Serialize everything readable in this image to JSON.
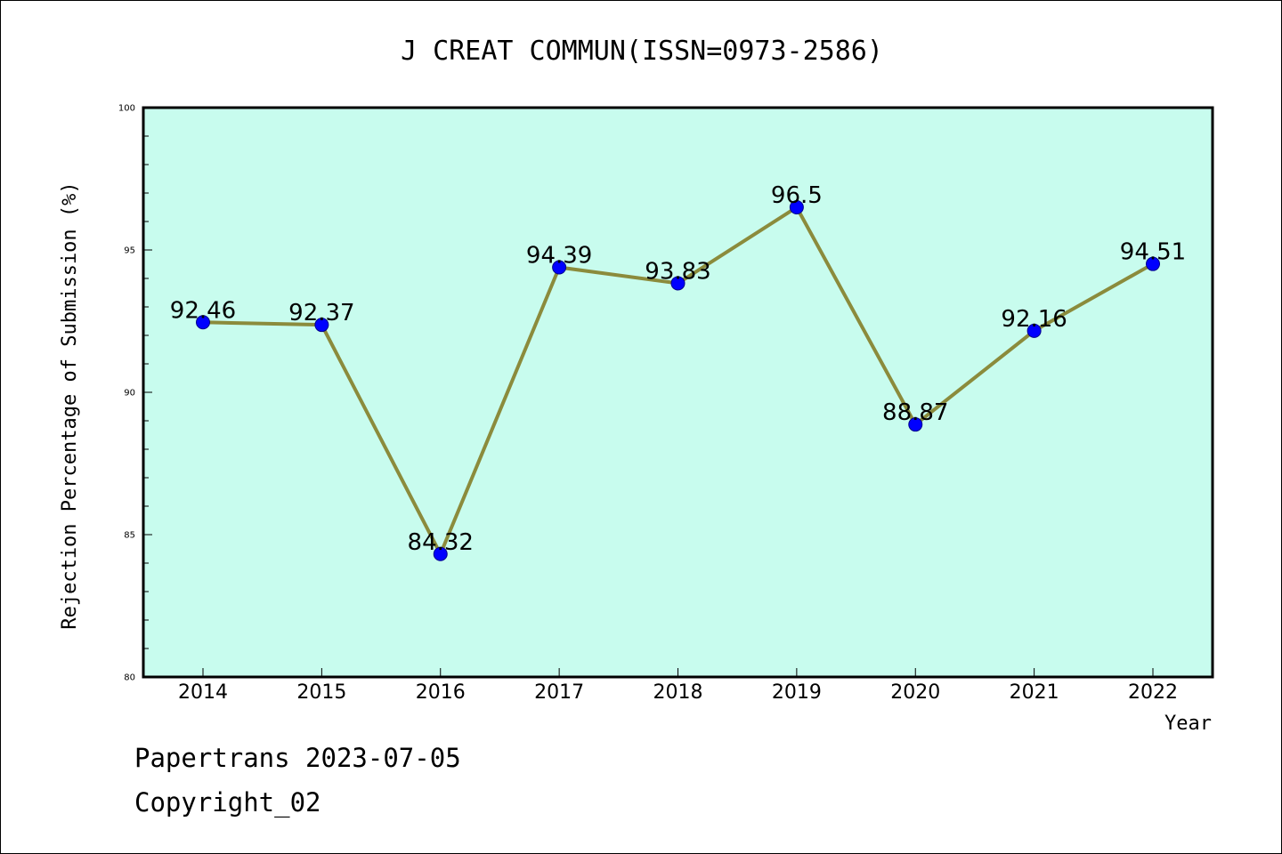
{
  "chart_data": {
    "type": "line",
    "title": "J CREAT COMMUN(ISSN=0973-2586)",
    "xlabel": "Year",
    "ylabel": "Rejection Percentage of Submission (%)",
    "categories": [
      "2014",
      "2015",
      "2016",
      "2017",
      "2018",
      "2019",
      "2020",
      "2021",
      "2022"
    ],
    "series": [
      {
        "values": [
          92.46,
          92.37,
          84.32,
          94.39,
          93.83,
          96.5,
          88.87,
          92.16,
          94.51
        ],
        "labels": [
          "92.46",
          "92.37",
          "84.32",
          "94.39",
          "93.83",
          "96.5",
          "88.87",
          "92.16",
          "94.51"
        ]
      }
    ],
    "ylim": [
      80,
      100
    ],
    "yticks": [
      "80",
      "85",
      "90",
      "95",
      "100"
    ],
    "grid": false,
    "colors": {
      "plot_background": "#c8fcee",
      "line": "#8b8b3c",
      "marker": "#0000ff"
    }
  },
  "footer": {
    "line1": "Papertrans 2023-07-05",
    "line2": "Copyright_02"
  }
}
